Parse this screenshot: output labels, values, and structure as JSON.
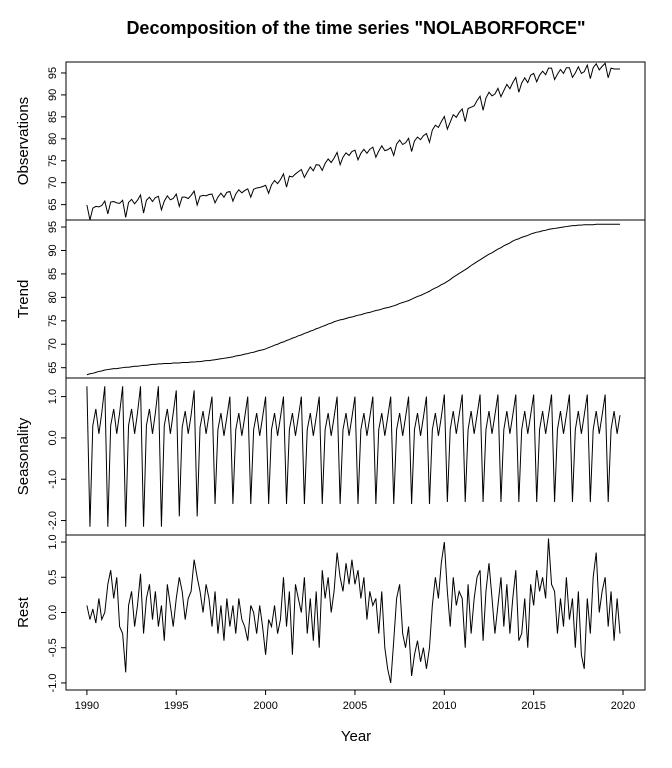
{
  "chart_data": {
    "type": "line",
    "title": "Decomposition of the time series \"NOLABORFORCE\"",
    "xlabel": "Year",
    "color": "#000000",
    "xlim": [
      1988.83,
      2021.23
    ],
    "xticks": [
      1990,
      1995,
      2000,
      2005,
      2010,
      2015,
      2020
    ],
    "x": [
      1990,
      1990.17,
      1990.33,
      1990.5,
      1990.67,
      1990.83,
      1991,
      1991.17,
      1991.33,
      1991.5,
      1991.67,
      1991.83,
      1992,
      1992.17,
      1992.33,
      1992.5,
      1992.67,
      1992.83,
      1993,
      1993.17,
      1993.33,
      1993.5,
      1993.67,
      1993.83,
      1994,
      1994.17,
      1994.33,
      1994.5,
      1994.67,
      1994.83,
      1995,
      1995.17,
      1995.33,
      1995.5,
      1995.67,
      1995.83,
      1996,
      1996.17,
      1996.33,
      1996.5,
      1996.67,
      1996.83,
      1997,
      1997.17,
      1997.33,
      1997.5,
      1997.67,
      1997.83,
      1998,
      1998.17,
      1998.33,
      1998.5,
      1998.67,
      1998.83,
      1999,
      1999.17,
      1999.33,
      1999.5,
      1999.67,
      1999.83,
      2000,
      2000.17,
      2000.33,
      2000.5,
      2000.67,
      2000.83,
      2001,
      2001.17,
      2001.33,
      2001.5,
      2001.67,
      2001.83,
      2002,
      2002.17,
      2002.33,
      2002.5,
      2002.67,
      2002.83,
      2003,
      2003.17,
      2003.33,
      2003.5,
      2003.67,
      2003.83,
      2004,
      2004.17,
      2004.33,
      2004.5,
      2004.67,
      2004.83,
      2005,
      2005.17,
      2005.33,
      2005.5,
      2005.67,
      2005.83,
      2006,
      2006.17,
      2006.33,
      2006.5,
      2006.67,
      2006.83,
      2007,
      2007.17,
      2007.33,
      2007.5,
      2007.67,
      2007.83,
      2008,
      2008.17,
      2008.33,
      2008.5,
      2008.67,
      2008.83,
      2009,
      2009.17,
      2009.33,
      2009.5,
      2009.67,
      2009.83,
      2010,
      2010.17,
      2010.33,
      2010.5,
      2010.67,
      2010.83,
      2011,
      2011.17,
      2011.33,
      2011.5,
      2011.67,
      2011.83,
      2012,
      2012.17,
      2012.33,
      2012.5,
      2012.67,
      2012.83,
      2013,
      2013.17,
      2013.33,
      2013.5,
      2013.67,
      2013.83,
      2014,
      2014.17,
      2014.33,
      2014.5,
      2014.67,
      2014.83,
      2015,
      2015.17,
      2015.33,
      2015.5,
      2015.67,
      2015.83,
      2016,
      2016.17,
      2016.33,
      2016.5,
      2016.67,
      2016.83,
      2017,
      2017.17,
      2017.33,
      2017.5,
      2017.67,
      2017.83,
      2018,
      2018.17,
      2018.33,
      2018.5,
      2018.67,
      2018.83,
      2019,
      2019.17,
      2019.33,
      2019.5,
      2019.67,
      2019.83
    ],
    "panels": [
      {
        "ylabel": "Observations",
        "ylim": [
          61.5,
          97.5
        ],
        "yticks": [
          65,
          70,
          75,
          80,
          85,
          90,
          95
        ],
        "values": [
          64.9,
          61.5,
          64.2,
          64.6,
          64.5,
          64.8,
          65.8,
          62.9,
          65.6,
          65.7,
          65.4,
          65.3,
          66.0,
          62.1,
          65.5,
          66.2,
          65.2,
          66.0,
          67.2,
          63.1,
          66.0,
          66.7,
          65.7,
          66.6,
          66.9,
          63.8,
          65.8,
          67.0,
          66.1,
          66.4,
          67.4,
          64.6,
          66.7,
          66.7,
          66.4,
          67.1,
          68.1,
          64.9,
          66.9,
          67.1,
          67.0,
          67.3,
          67.4,
          65.4,
          66.7,
          67.6,
          66.7,
          67.8,
          68.0,
          65.8,
          67.4,
          68.4,
          67.7,
          68.2,
          68.6,
          66.7,
          68.5,
          68.8,
          68.9,
          69.1,
          69.4,
          67.6,
          69.5,
          70.5,
          69.8,
          70.7,
          72.0,
          69.0,
          71.5,
          71.3,
          72.0,
          72.5,
          73.0,
          71.2,
          72.4,
          73.6,
          72.7,
          74.1,
          74.0,
          72.8,
          74.4,
          75.4,
          74.6,
          75.6,
          76.9,
          74.1,
          75.8,
          76.8,
          76.2,
          77.1,
          77.4,
          75.2,
          76.7,
          77.6,
          76.7,
          77.6,
          78.1,
          75.8,
          77.2,
          78.4,
          77.3,
          77.5,
          78.0,
          76.2,
          78.8,
          79.7,
          78.7,
          79.1,
          80.1,
          77.1,
          79.5,
          80.4,
          79.8,
          80.7,
          81.2,
          79.2,
          82.0,
          83.1,
          82.6,
          83.9,
          85.1,
          82.2,
          83.8,
          85.5,
          84.9,
          86.0,
          86.8,
          83.9,
          86.9,
          87.2,
          87.5,
          88.7,
          89.7,
          86.5,
          89.3,
          90.6,
          89.8,
          90.2,
          91.5,
          89.6,
          91.0,
          92.4,
          91.4,
          92.8,
          94.0,
          90.6,
          92.7,
          93.9,
          92.8,
          94.5,
          94.9,
          93.0,
          94.5,
          95.4,
          94.6,
          96.1,
          96.1,
          93.5,
          94.7,
          95.8,
          94.9,
          96.2,
          96.2,
          94.0,
          95.0,
          96.4,
          94.9,
          95.3,
          96.8,
          93.7,
          96.2,
          97.1,
          95.7,
          96.5,
          97.2,
          93.9,
          96.1,
          95.9,
          95.9,
          95.9
        ]
      },
      {
        "ylabel": "Trend",
        "ylim": [
          62.8,
          96.5
        ],
        "yticks": [
          65,
          70,
          75,
          80,
          85,
          90,
          95
        ],
        "values": [
          63.5,
          63.7,
          63.8,
          64.0,
          64.2,
          64.3,
          64.5,
          64.6,
          64.7,
          64.8,
          64.8,
          64.9,
          65.0,
          65.1,
          65.1,
          65.2,
          65.3,
          65.3,
          65.4,
          65.5,
          65.5,
          65.6,
          65.7,
          65.7,
          65.8,
          65.8,
          65.9,
          65.9,
          65.9,
          66.0,
          66.0,
          66.0,
          66.1,
          66.1,
          66.1,
          66.2,
          66.2,
          66.3,
          66.3,
          66.4,
          66.5,
          66.5,
          66.6,
          66.7,
          66.8,
          66.9,
          67.0,
          67.1,
          67.2,
          67.3,
          67.5,
          67.6,
          67.7,
          67.9,
          68.0,
          68.2,
          68.3,
          68.5,
          68.7,
          68.8,
          69.0,
          69.3,
          69.5,
          69.8,
          70.0,
          70.3,
          70.5,
          70.8,
          71.0,
          71.3,
          71.5,
          71.8,
          72.0,
          72.3,
          72.5,
          72.8,
          73.0,
          73.3,
          73.5,
          73.8,
          74.0,
          74.3,
          74.5,
          74.8,
          75.0,
          75.2,
          75.3,
          75.5,
          75.7,
          75.8,
          76.0,
          76.2,
          76.3,
          76.5,
          76.7,
          76.8,
          77.0,
          77.2,
          77.3,
          77.5,
          77.7,
          77.8,
          78.0,
          78.2,
          78.4,
          78.7,
          78.9,
          79.1,
          79.3,
          79.6,
          79.9,
          80.2,
          80.4,
          80.7,
          81.0,
          81.3,
          81.7,
          82.0,
          82.3,
          82.7,
          83.0,
          83.4,
          83.8,
          84.3,
          84.7,
          85.1,
          85.5,
          85.9,
          86.3,
          86.8,
          87.2,
          87.6,
          88.0,
          88.4,
          88.8,
          89.2,
          89.5,
          89.9,
          90.3,
          90.6,
          91.0,
          91.3,
          91.6,
          92.0,
          92.3,
          92.5,
          92.8,
          93.0,
          93.2,
          93.5,
          93.7,
          93.9,
          94.0,
          94.2,
          94.3,
          94.5,
          94.6,
          94.7,
          94.8,
          94.9,
          95.0,
          95.1,
          95.2,
          95.3,
          95.3,
          95.4,
          95.4,
          95.5,
          95.5,
          95.5,
          95.5,
          95.6,
          95.6,
          95.6,
          95.6,
          95.6,
          95.6,
          95.6,
          95.6,
          95.6
        ]
      },
      {
        "ylabel": "Seasonality",
        "ylim": [
          -2.35,
          1.45
        ],
        "yticks": [
          {
            "value": -2,
            "label": "-2.0"
          },
          {
            "value": -1,
            "label": "-1.0"
          },
          {
            "value": 0,
            "label": "0.0"
          },
          {
            "value": 1,
            "label": "1.0"
          }
        ],
        "values": [
          1.25,
          -2.15,
          0.3,
          0.7,
          0.1,
          0.6,
          1.25,
          -2.15,
          0.3,
          0.7,
          0.1,
          0.6,
          1.25,
          -2.15,
          0.3,
          0.7,
          0.1,
          0.6,
          1.25,
          -2.15,
          0.3,
          0.7,
          0.1,
          0.6,
          1.25,
          -2.15,
          0.3,
          0.7,
          0.1,
          0.6,
          1.15,
          -1.9,
          0.25,
          0.65,
          0.1,
          0.55,
          1.15,
          -1.9,
          0.25,
          0.65,
          0.1,
          0.55,
          1.0,
          -1.6,
          0.2,
          0.6,
          0.05,
          0.5,
          1.0,
          -1.6,
          0.2,
          0.6,
          0.05,
          0.5,
          1.0,
          -1.6,
          0.2,
          0.6,
          0.05,
          0.5,
          1.0,
          -1.6,
          0.2,
          0.6,
          0.05,
          0.5,
          1.0,
          -1.6,
          0.2,
          0.6,
          0.05,
          0.5,
          1.0,
          -1.6,
          0.2,
          0.6,
          0.05,
          0.5,
          1.0,
          -1.6,
          0.2,
          0.6,
          0.05,
          0.5,
          1.0,
          -1.6,
          0.2,
          0.6,
          0.05,
          0.5,
          1.0,
          -1.6,
          0.2,
          0.6,
          0.05,
          0.5,
          1.0,
          -1.6,
          0.2,
          0.6,
          0.05,
          0.5,
          1.0,
          -1.6,
          0.2,
          0.6,
          0.05,
          0.5,
          1.0,
          -1.6,
          0.2,
          0.6,
          0.05,
          0.5,
          1.0,
          -1.6,
          0.2,
          0.6,
          0.05,
          0.5,
          1.05,
          -1.55,
          0.2,
          0.65,
          0.1,
          0.55,
          1.05,
          -1.55,
          0.2,
          0.65,
          0.1,
          0.55,
          1.05,
          -1.55,
          0.2,
          0.65,
          0.1,
          0.55,
          1.05,
          -1.55,
          0.2,
          0.65,
          0.1,
          0.55,
          1.05,
          -1.55,
          0.2,
          0.65,
          0.1,
          0.55,
          1.05,
          -1.55,
          0.2,
          0.65,
          0.1,
          0.55,
          1.05,
          -1.55,
          0.2,
          0.65,
          0.1,
          0.55,
          1.05,
          -1.55,
          0.2,
          0.65,
          0.1,
          0.55,
          1.05,
          -1.55,
          0.2,
          0.65,
          0.1,
          0.55,
          1.05,
          -1.55,
          0.2,
          0.65,
          0.1,
          0.55
        ]
      },
      {
        "ylabel": "Rest",
        "ylim": [
          -1.1,
          1.1
        ],
        "yticks": [
          {
            "value": -1,
            "label": "-1.0"
          },
          -0.5,
          {
            "value": 0,
            "label": "0.0"
          },
          0.5,
          {
            "value": 1,
            "label": "1.0"
          }
        ],
        "values": [
          0.1,
          -0.1,
          0.05,
          -0.15,
          0.2,
          -0.1,
          0.0,
          0.4,
          0.6,
          0.2,
          0.5,
          -0.2,
          -0.3,
          -0.85,
          0.1,
          0.3,
          -0.2,
          0.1,
          0.55,
          -0.3,
          0.2,
          0.4,
          -0.1,
          0.3,
          -0.2,
          0.1,
          -0.4,
          0.4,
          0.1,
          -0.2,
          0.2,
          0.5,
          0.3,
          -0.1,
          0.2,
          0.3,
          0.75,
          0.5,
          0.3,
          0.0,
          0.4,
          0.2,
          -0.2,
          0.3,
          -0.3,
          0.1,
          -0.4,
          0.2,
          -0.2,
          0.1,
          -0.3,
          0.2,
          -0.1,
          -0.2,
          -0.4,
          0.1,
          0.0,
          -0.3,
          0.1,
          -0.2,
          -0.6,
          -0.1,
          -0.2,
          0.1,
          -0.3,
          -0.1,
          0.5,
          -0.2,
          0.3,
          -0.6,
          0.4,
          0.2,
          0.0,
          0.5,
          -0.3,
          0.2,
          -0.4,
          0.3,
          -0.5,
          0.6,
          0.2,
          0.5,
          0.0,
          0.3,
          0.85,
          0.5,
          0.3,
          0.7,
          0.4,
          0.75,
          0.4,
          0.6,
          0.2,
          0.5,
          -0.1,
          0.3,
          0.1,
          0.2,
          -0.3,
          0.3,
          -0.5,
          -0.8,
          -1.0,
          -0.4,
          0.2,
          0.4,
          -0.3,
          -0.5,
          -0.2,
          -0.9,
          -0.6,
          -0.4,
          -0.7,
          -0.5,
          -0.8,
          -0.5,
          0.1,
          0.5,
          0.2,
          0.7,
          1.0,
          0.3,
          -0.2,
          0.5,
          0.1,
          0.3,
          0.2,
          -0.5,
          0.4,
          -0.3,
          0.2,
          0.5,
          0.6,
          -0.4,
          0.3,
          0.7,
          0.2,
          -0.3,
          0.1,
          0.5,
          -0.2,
          0.4,
          -0.3,
          0.2,
          0.6,
          -0.4,
          -0.3,
          0.2,
          -0.5,
          0.4,
          0.1,
          0.6,
          0.3,
          0.5,
          0.2,
          1.05,
          0.4,
          0.3,
          -0.3,
          0.2,
          -0.2,
          0.5,
          -0.1,
          0.2,
          -0.5,
          0.3,
          -0.6,
          -0.8,
          0.2,
          -0.3,
          0.5,
          0.85,
          0.0,
          0.3,
          0.5,
          -0.2,
          0.3,
          -0.4,
          0.2,
          -0.3
        ]
      }
    ]
  }
}
